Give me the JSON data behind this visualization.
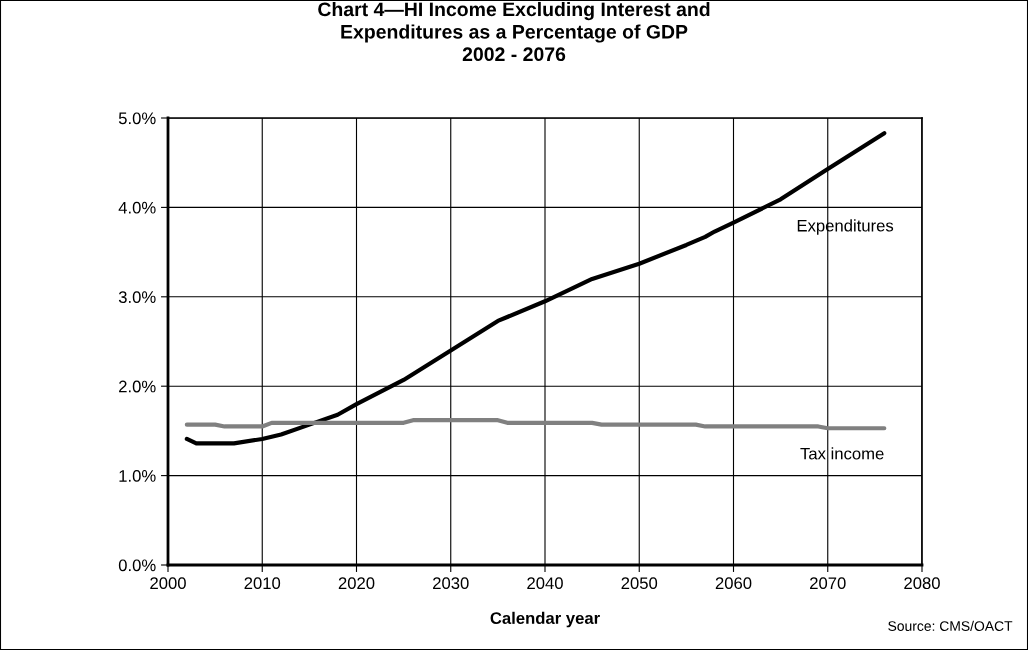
{
  "chart_data": {
    "type": "line",
    "title": "Chart 4—HI Income Excluding Interest and\nExpenditures as a Percentage of GDP\n2002 - 2076",
    "xlabel": "Calendar year",
    "series": [
      {
        "name": "Expenditures",
        "color": "#000000",
        "x": [
          2002,
          2003,
          2007,
          2010,
          2012,
          2015,
          2018,
          2020,
          2025,
          2030,
          2035,
          2040,
          2045,
          2050,
          2055,
          2057,
          2058,
          2060,
          2065,
          2070,
          2076
        ],
        "values": [
          1.41,
          1.36,
          1.36,
          1.41,
          1.46,
          1.57,
          1.68,
          1.8,
          2.07,
          2.4,
          2.73,
          2.95,
          3.2,
          3.37,
          3.58,
          3.67,
          3.73,
          3.83,
          4.09,
          4.43,
          4.83
        ]
      },
      {
        "name": "Tax income",
        "color": "#808080",
        "x": [
          2002,
          2005,
          2006,
          2010,
          2011,
          2025,
          2026,
          2035,
          2036,
          2045,
          2046,
          2056,
          2057,
          2069,
          2070,
          2076
        ],
        "values": [
          1.57,
          1.57,
          1.55,
          1.55,
          1.59,
          1.59,
          1.62,
          1.62,
          1.59,
          1.59,
          1.57,
          1.57,
          1.55,
          1.55,
          1.53,
          1.53
        ]
      }
    ],
    "xlim": [
      2000,
      2080
    ],
    "xticks": [
      2000,
      2010,
      2020,
      2030,
      2040,
      2050,
      2060,
      2070,
      2080
    ],
    "ylim": [
      0,
      5
    ],
    "yticks": [
      {
        "value": 0,
        "label": "0.0%"
      },
      {
        "value": 1,
        "label": "1.0%"
      },
      {
        "value": 2,
        "label": "2.0%"
      },
      {
        "value": 3,
        "label": "3.0%"
      },
      {
        "value": 4,
        "label": "4.0%"
      },
      {
        "value": 5,
        "label": "5.0%"
      }
    ],
    "grid": true,
    "marker": "none",
    "line_style": "solid",
    "annotations": [
      "Source: CMS/OACT"
    ]
  }
}
